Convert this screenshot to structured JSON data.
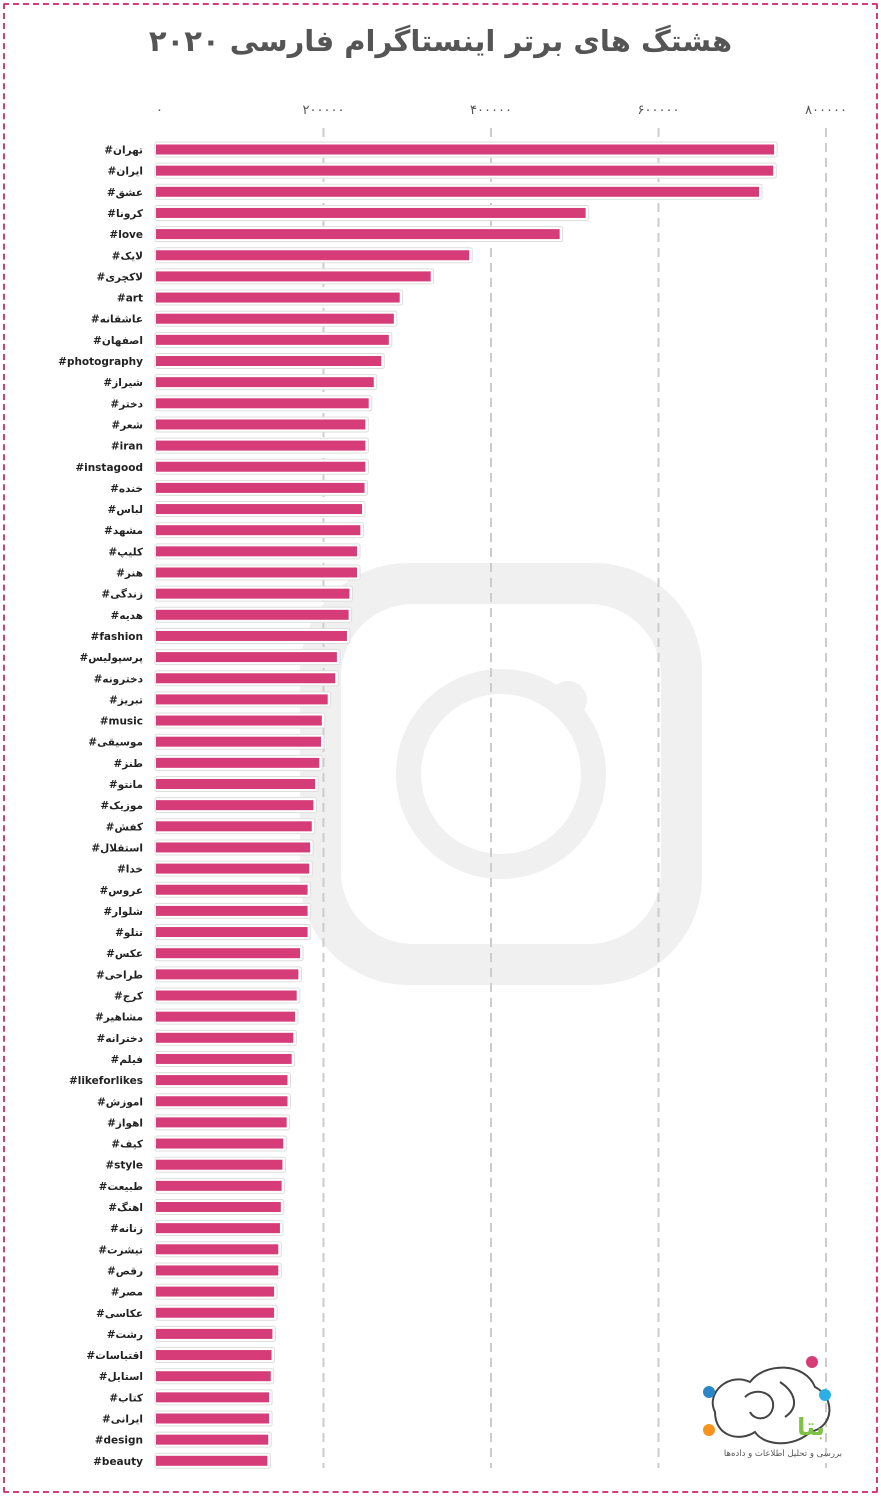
{
  "title": "هشتگ های برتر اینستاگرام فارسی ۲۰۲۰",
  "brand": {
    "name": "بتا",
    "tagline": "بررسی و تحلیل اطلاعات و داده‌ها"
  },
  "colors": {
    "bar": "#d63c78",
    "frame": "#d63c78",
    "grid": "#cccccc",
    "watermark": "#f0f0f0"
  },
  "chart_data": {
    "type": "bar",
    "orientation": "horizontal",
    "title": "هشتگ های برتر اینستاگرام فارسی ۲۰۲۰",
    "xlim": [
      0,
      800000
    ],
    "xticks": [
      0,
      200000,
      400000,
      600000,
      800000
    ],
    "xtick_labels": [
      "۰",
      "۲۰۰۰۰۰",
      "۴۰۰۰۰۰",
      "۶۰۰۰۰۰",
      "۸۰۰۰۰۰"
    ],
    "grid": "vertical-dashed",
    "categories": [
      "#تهران",
      "#ایران",
      "#عشق",
      "#کرونا",
      "#love",
      "#لایک",
      "#لاکچری",
      "#art",
      "#عاشقانه",
      "#اصفهان",
      "#photography",
      "#شیراز",
      "#دختر",
      "#شعر",
      "#iran",
      "#instagood",
      "#خنده",
      "#لباس",
      "#مشهد",
      "#کلیپ",
      "#هنر",
      "#زندگی",
      "#هدیه",
      "#fashion",
      "#پرسپولیس",
      "#دخترونه",
      "#تبریز",
      "#music",
      "#موسیقی",
      "#طنز",
      "#مانتو",
      "#موزیک",
      "#کفش",
      "#استقلال",
      "#خدا",
      "#عروس",
      "#شلوار",
      "#تتلو",
      "#عکس",
      "#طراحی",
      "#کرج",
      "#مشاهیر",
      "#دخترانه",
      "#فیلم",
      "#likeforlikes",
      "#اموزش",
      "#اهواز",
      "#کیف",
      "#style",
      "#طبیعت",
      "#اهنگ",
      "#زنانه",
      "#تیشرت",
      "#رقص",
      "#مصر",
      "#عکاسی",
      "#رشت",
      "#اقتباسات",
      "#استایل",
      "#کتاب",
      "#ایرانی",
      "#design",
      "#beauty"
    ],
    "values": [
      738000,
      737000,
      720000,
      513000,
      482000,
      374000,
      328000,
      291000,
      284000,
      278000,
      269000,
      260000,
      254000,
      250000,
      250000,
      250000,
      249000,
      246000,
      244000,
      240000,
      240000,
      231000,
      230000,
      228000,
      216000,
      214000,
      205000,
      198000,
      197000,
      195000,
      190000,
      188000,
      186000,
      184000,
      183000,
      181000,
      181000,
      181000,
      172000,
      170000,
      168000,
      166000,
      164000,
      162000,
      157000,
      157000,
      156000,
      152000,
      151000,
      150000,
      149000,
      148000,
      146000,
      146000,
      141000,
      141000,
      139000,
      138000,
      137000,
      135000,
      135000,
      134000,
      133000
    ]
  }
}
